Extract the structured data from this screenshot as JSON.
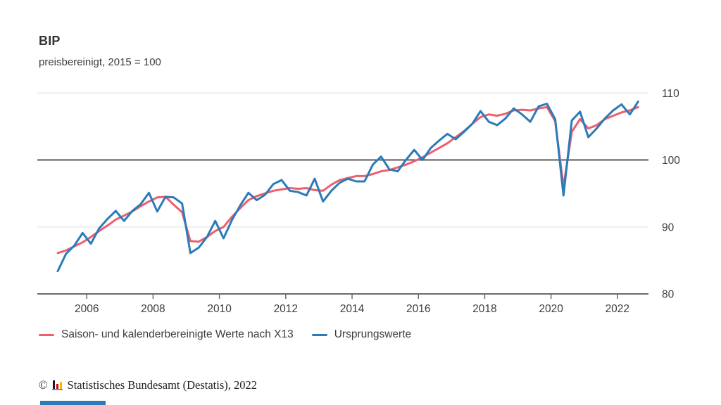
{
  "title": "BIP",
  "subtitle": "preisbereinigt, 2015 = 100",
  "legend": [
    {
      "label": "Saison- und kalenderbereinigte Werte nach X13",
      "color": "#ee5f6e"
    },
    {
      "label": "Ursprungswerte",
      "color": "#2b7bb9"
    }
  ],
  "footer": {
    "copyright": "©",
    "text": "Statistisches Bundesamt (Destatis), 2022"
  },
  "colors": {
    "adjusted_line": "#ee5f6e",
    "original_line": "#2b7bb9",
    "grid_light": "#eaeaea",
    "reference_line": "#3d3d3d",
    "axis": "#6b6b6b",
    "tick_text": "#3d3d3d"
  },
  "chart_data": {
    "type": "line",
    "frequency": "quarterly",
    "x_range": [
      "2005 Q1",
      "2022 Q3"
    ],
    "x_tick_years": [
      2006,
      2008,
      2010,
      2012,
      2014,
      2016,
      2018,
      2020,
      2022
    ],
    "y_ticks": [
      80,
      90,
      100,
      110
    ],
    "ylim": [
      80,
      110
    ],
    "reference_line": 100,
    "grid": "horizontal-only",
    "legend_position": "bottom-left",
    "xlabel": "",
    "ylabel": "",
    "series": [
      {
        "name": "Saison- und kalenderbereinigte Werte nach X13",
        "color": "#ee5f6e",
        "values": [
          86.1,
          86.5,
          87.1,
          87.7,
          88.5,
          89.4,
          90.2,
          91.1,
          91.7,
          92.3,
          93.1,
          93.8,
          94.4,
          94.5,
          93.3,
          92.2,
          87.9,
          87.8,
          88.5,
          89.4,
          90.0,
          91.5,
          92.8,
          94.0,
          94.6,
          95.0,
          95.4,
          95.6,
          95.8,
          95.7,
          95.8,
          95.5,
          95.4,
          96.3,
          97.0,
          97.3,
          97.6,
          97.6,
          97.9,
          98.3,
          98.5,
          98.9,
          99.3,
          99.8,
          100.4,
          101.1,
          101.8,
          102.5,
          103.4,
          104.3,
          105.4,
          106.4,
          106.8,
          106.6,
          106.9,
          107.4,
          107.5,
          107.4,
          107.7,
          107.9,
          105.8,
          96.0,
          104.2,
          106.1,
          104.7,
          105.2,
          106.1,
          106.6,
          107.1,
          107.4,
          107.9
        ]
      },
      {
        "name": "Ursprungswerte",
        "color": "#2b7bb9",
        "values": [
          83.4,
          86.0,
          87.2,
          89.1,
          87.5,
          89.8,
          91.2,
          92.4,
          90.9,
          92.4,
          93.4,
          95.1,
          92.3,
          94.5,
          94.4,
          93.5,
          86.1,
          86.9,
          88.5,
          90.9,
          88.3,
          91.0,
          93.2,
          95.1,
          94.0,
          94.8,
          96.4,
          97.0,
          95.4,
          95.2,
          94.7,
          97.2,
          93.8,
          95.4,
          96.6,
          97.2,
          96.8,
          96.8,
          99.3,
          100.5,
          98.6,
          98.3,
          100.0,
          101.5,
          100.0,
          101.8,
          102.9,
          103.9,
          103.1,
          104.2,
          105.4,
          107.3,
          105.7,
          105.2,
          106.2,
          107.7,
          106.8,
          105.7,
          108.0,
          108.4,
          106.1,
          94.7,
          105.9,
          107.2,
          103.4,
          104.7,
          106.2,
          107.4,
          108.3,
          106.8,
          108.7
        ]
      }
    ]
  }
}
